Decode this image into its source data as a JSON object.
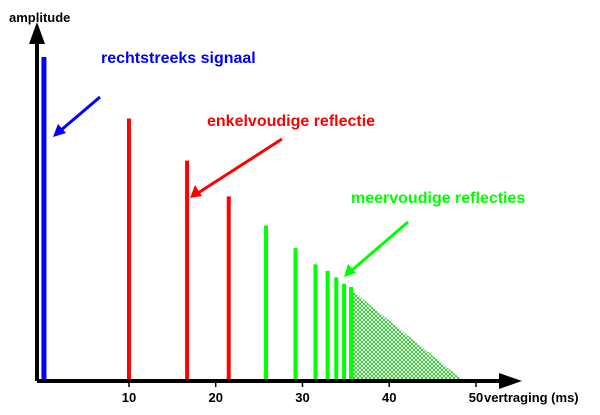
{
  "chart_data": {
    "type": "bar",
    "xlabel": "vertraging (ms)",
    "ylabel": "amplitude",
    "xticks": [
      10,
      20,
      30,
      40,
      50
    ],
    "xlim": [
      -0.6,
      53
    ],
    "ylim": [
      0,
      100
    ],
    "grid": false,
    "series": [
      {
        "name": "rechtstreeks signaal",
        "color": "#0000ff",
        "x": [
          0.2
        ],
        "values": [
          100
        ]
      },
      {
        "name": "enkelvoudige reflectie",
        "color": "#ff0000",
        "x": [
          10,
          16.7,
          21.5
        ],
        "values": [
          81,
          68,
          57
        ]
      },
      {
        "name": "meervoudige reflecties",
        "color": "#00ff00",
        "x": [
          25.8,
          29.2,
          31.5,
          32.9,
          33.9,
          34.8,
          35.6
        ],
        "values": [
          48,
          41,
          36,
          34,
          32,
          30,
          29
        ]
      }
    ],
    "tail": {
      "x_start": 35.7,
      "x_end": 48.6,
      "amplitude_start": 28,
      "color": "#00cc00"
    },
    "annotations": [
      {
        "text": "rechtstreeks signaal",
        "color": "#0000ff"
      },
      {
        "text": "enkelvoudige reflectie",
        "color": "#ff0000"
      },
      {
        "text": "meervoudige reflecties",
        "color": "#00ff00"
      }
    ]
  }
}
